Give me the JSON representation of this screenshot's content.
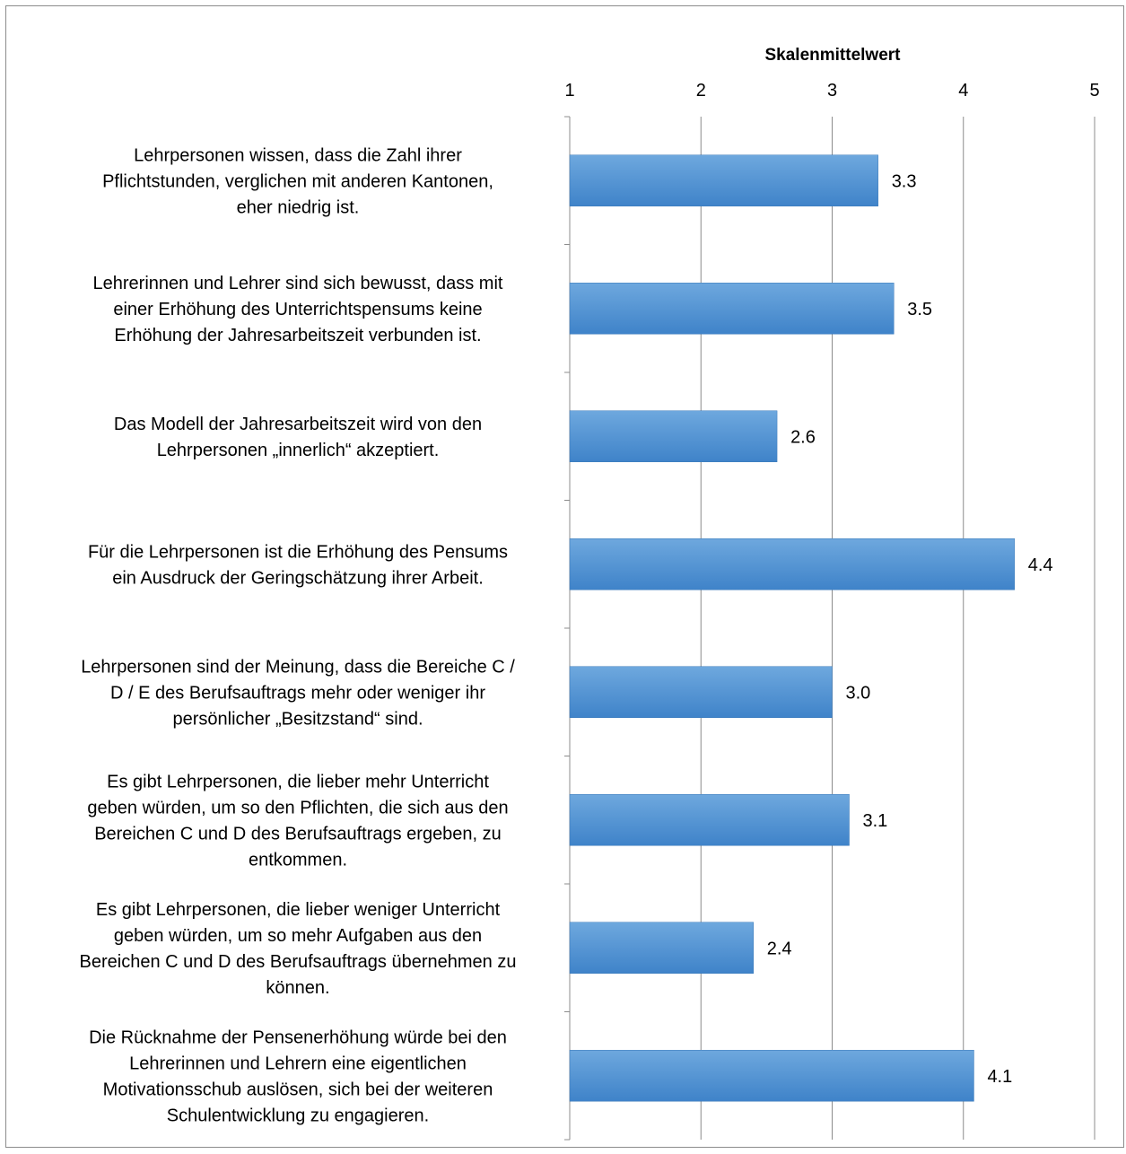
{
  "chart_data": {
    "type": "bar",
    "orientation": "horizontal",
    "xlabel": "Skalenmittelwert",
    "xlim": [
      1,
      5
    ],
    "xticks": [
      1,
      2,
      3,
      4,
      5
    ],
    "axis_position": "top",
    "grid": true,
    "bar_color": "#5b9bd5",
    "categories": [
      [
        "Lehrpersonen wissen, dass die Zahl ihrer",
        "Pflichtstunden, verglichen mit anderen Kantonen,",
        "eher niedrig ist."
      ],
      [
        "Lehrerinnen und Lehrer sind sich bewusst, dass mit",
        "einer Erhöhung des Unterrichtspensums keine",
        "Erhöhung der Jahresarbeitszeit verbunden ist."
      ],
      [
        "Das Modell der Jahresarbeitszeit wird von den",
        "Lehrpersonen „innerlich“ akzeptiert."
      ],
      [
        "Für die Lehrpersonen ist die Erhöhung des Pensums",
        "ein Ausdruck der Geringschätzung ihrer Arbeit."
      ],
      [
        "Lehrpersonen sind der Meinung, dass die Bereiche C /",
        "D / E des Berufsauftrags mehr oder weniger ihr",
        "persönlicher „Besitzstand“ sind."
      ],
      [
        "Es gibt Lehrpersonen, die lieber mehr Unterricht",
        "geben würden, um so den Pflichten, die sich aus den",
        "Bereichen C und D des Berufsauftrags ergeben, zu",
        "entkommen."
      ],
      [
        "Es gibt Lehrpersonen, die lieber weniger Unterricht",
        "geben würden, um so mehr Aufgaben aus den",
        "Bereichen C und D des Berufsauftrags übernehmen zu",
        "können."
      ],
      [
        "Die Rücknahme der Pensenerhöhung würde bei den",
        "Lehrerinnen und Lehrern eine eigentlichen",
        "Motivationsschub auslösen, sich bei der weiteren",
        "Schulentwicklung zu engagieren."
      ]
    ],
    "values": [
      3.35,
      3.47,
      2.58,
      4.39,
      3.0,
      3.13,
      2.4,
      4.08
    ],
    "data_labels": [
      "3.3",
      "3.5",
      "2.6",
      "4.4",
      "3.0",
      "3.1",
      "2.4",
      "4.1"
    ]
  }
}
